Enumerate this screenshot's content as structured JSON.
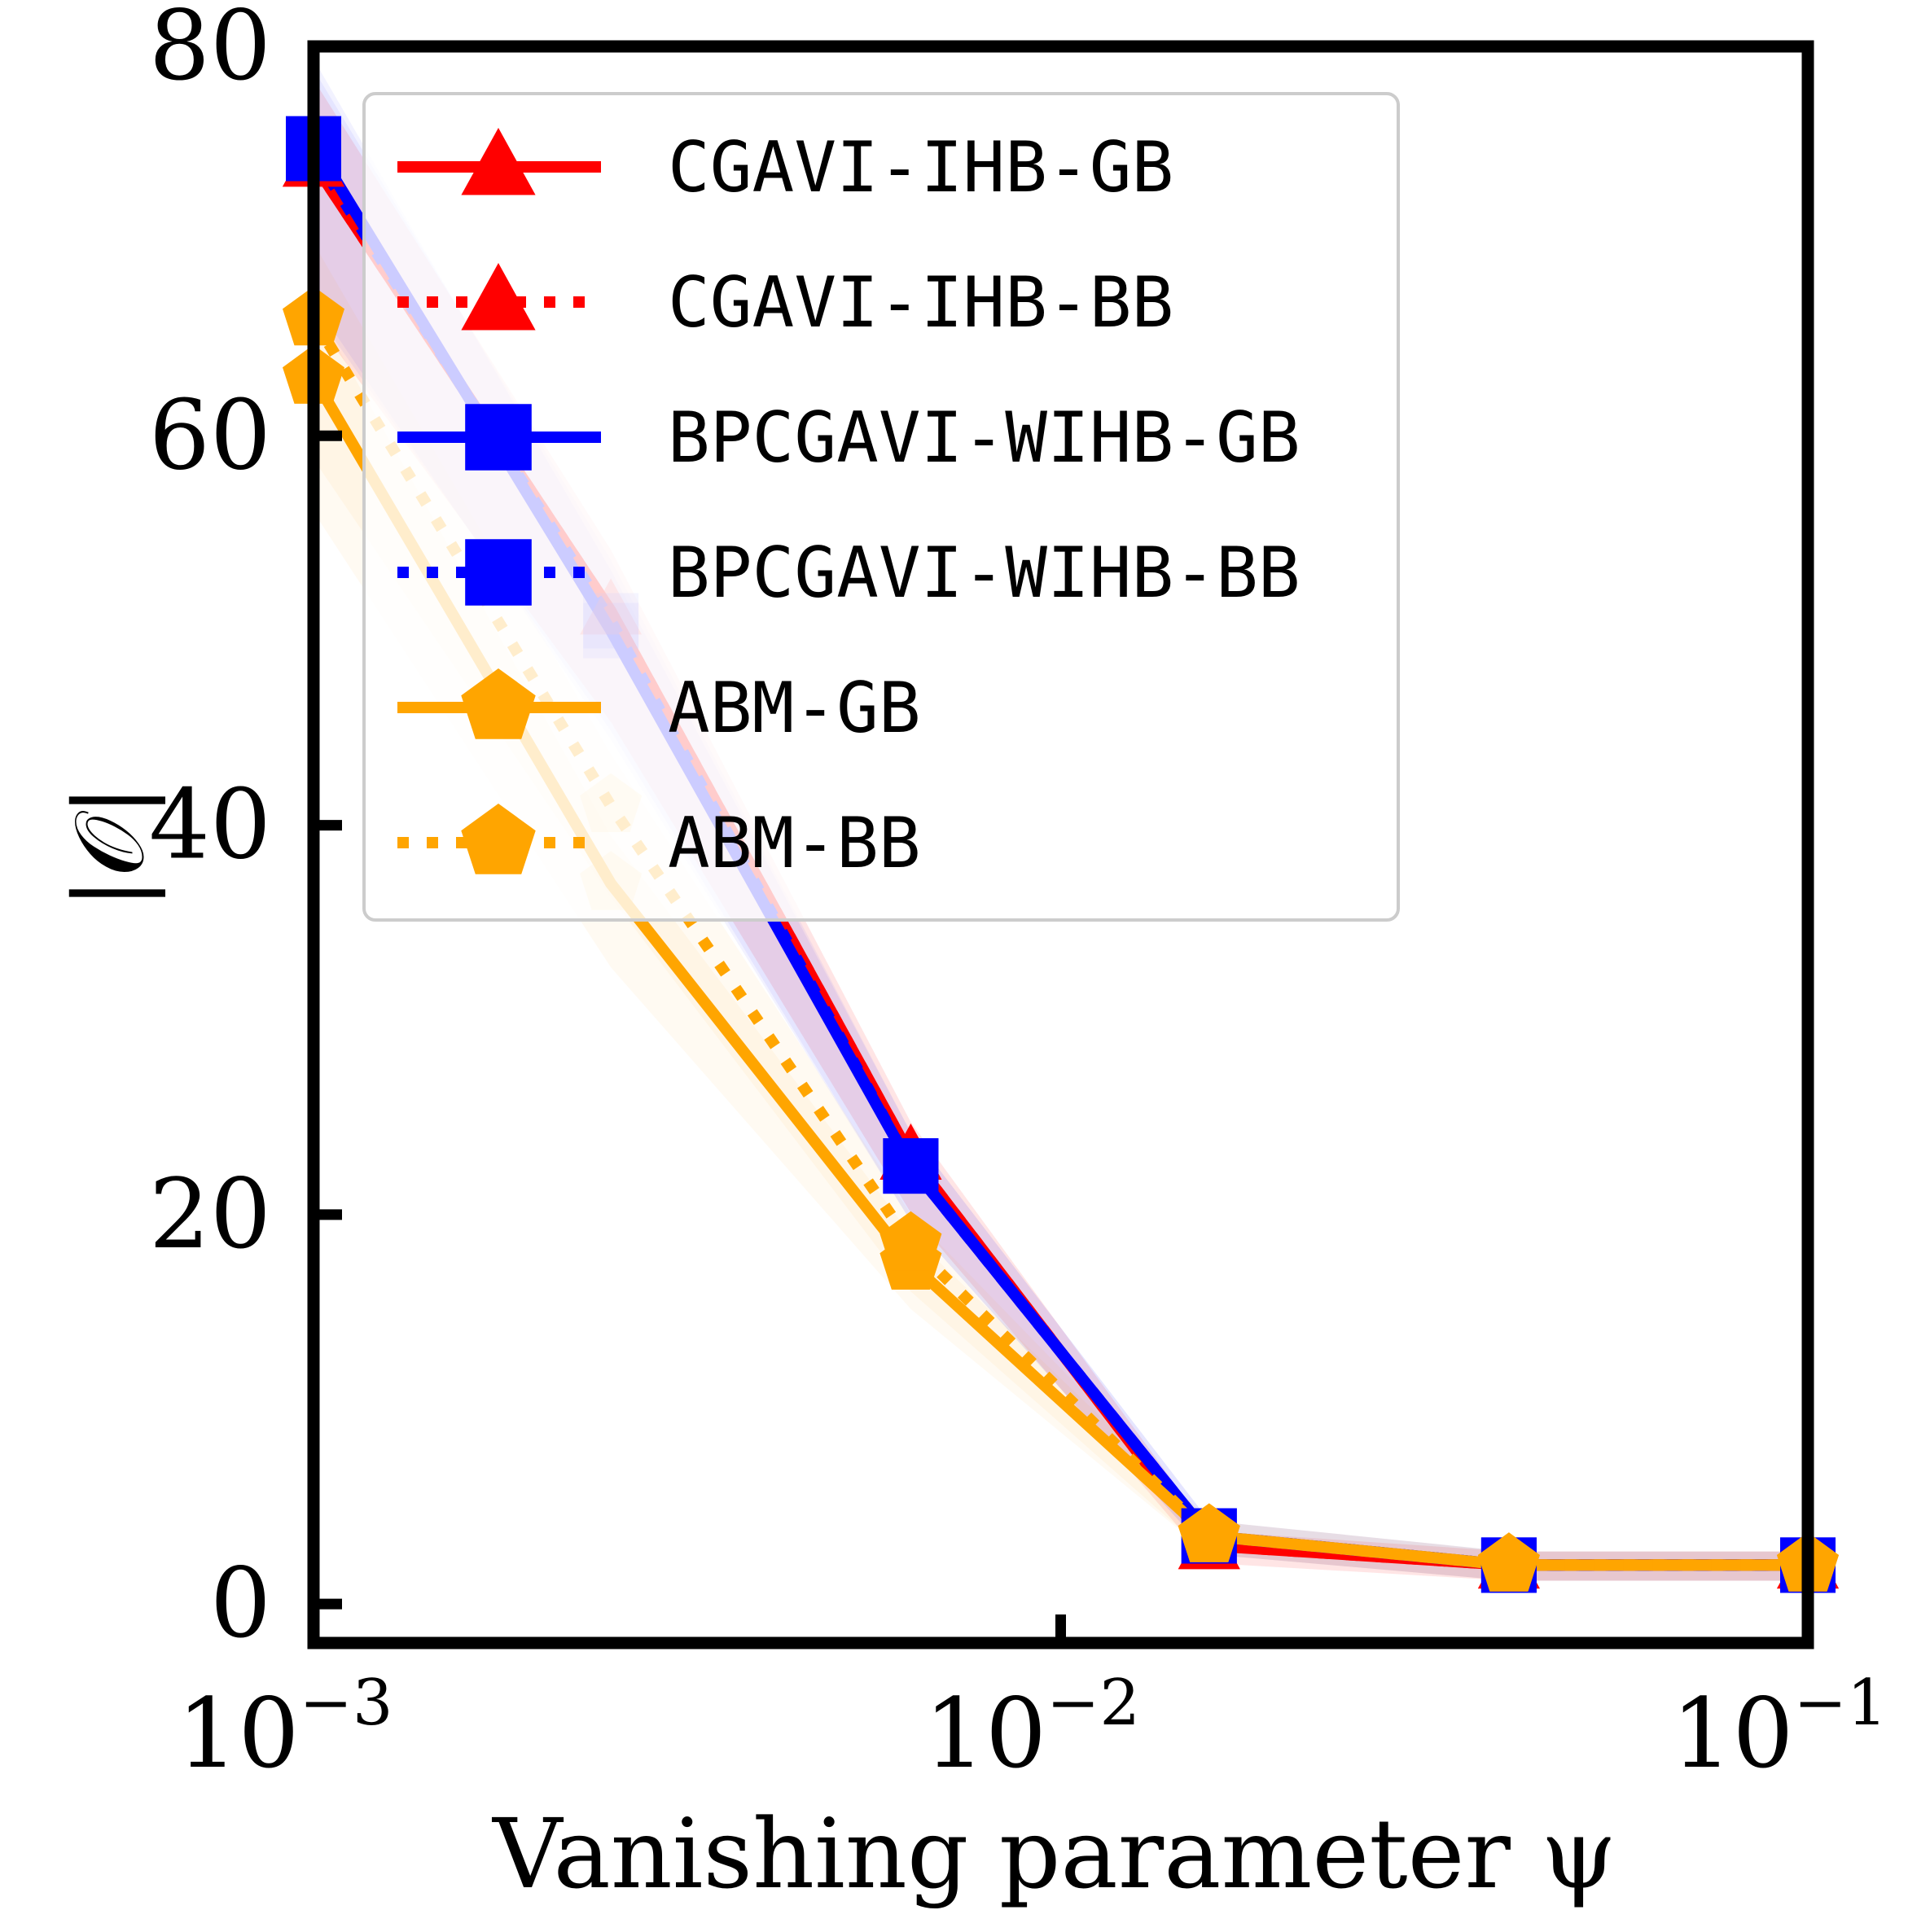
{
  "chart_data": {
    "type": "line",
    "xlabel": "Vanishing parameter ψ",
    "ylabel": "|𝒪|",
    "x_scale": "log",
    "xlim": [
      0.001,
      0.1
    ],
    "ylim": [
      -2,
      80
    ],
    "x_ticks": [
      {
        "value": 0.001,
        "base": "10",
        "exp": "−3"
      },
      {
        "value": 0.01,
        "base": "10",
        "exp": "−2"
      },
      {
        "value": 0.1,
        "base": "10",
        "exp": "−1"
      }
    ],
    "y_ticks": [
      0,
      20,
      40,
      60,
      80
    ],
    "grid": false,
    "legend_position": "top-left",
    "x": [
      0.001,
      0.0025,
      0.0063,
      0.0158,
      0.0398,
      0.1
    ],
    "series": [
      {
        "name": "CGAVI-IHB-GB",
        "color": "#ff0000",
        "dash": "solid",
        "marker": "triangle",
        "values": [
          74,
          51,
          23,
          3,
          2,
          2
        ],
        "faded": [
          false,
          true,
          false,
          false,
          false,
          false
        ]
      },
      {
        "name": "CGAVI-IHB-BB",
        "color": "#ff0000",
        "dash": "dotted",
        "marker": "triangle",
        "values": [
          74,
          51,
          23,
          3,
          2,
          2
        ],
        "faded": [
          false,
          true,
          false,
          false,
          false,
          false
        ]
      },
      {
        "name": "BPCGAVI-WIHB-GB",
        "color": "#0000ff",
        "dash": "solid",
        "marker": "square",
        "values": [
          75,
          50,
          22.5,
          3.5,
          2,
          2
        ],
        "faded": [
          false,
          true,
          false,
          false,
          false,
          false
        ]
      },
      {
        "name": "BPCGAVI-WIHB-BB",
        "color": "#0000ff",
        "dash": "dotted",
        "marker": "square",
        "values": [
          74.5,
          50.5,
          22.5,
          3.5,
          2,
          2
        ],
        "faded": [
          false,
          true,
          false,
          false,
          false,
          false
        ]
      },
      {
        "name": "ABM-GB",
        "color": "#ffa500",
        "dash": "solid",
        "marker": "pentagon",
        "values": [
          63,
          37,
          17.5,
          3.5,
          2,
          2
        ],
        "faded": [
          false,
          true,
          false,
          false,
          false,
          false
        ]
      },
      {
        "name": "ABM-BB",
        "color": "#ffa500",
        "dash": "dotted",
        "marker": "pentagon",
        "values": [
          66,
          41,
          18.5,
          3.5,
          2,
          2
        ],
        "faded": [
          false,
          true,
          false,
          false,
          false,
          false
        ]
      }
    ]
  }
}
